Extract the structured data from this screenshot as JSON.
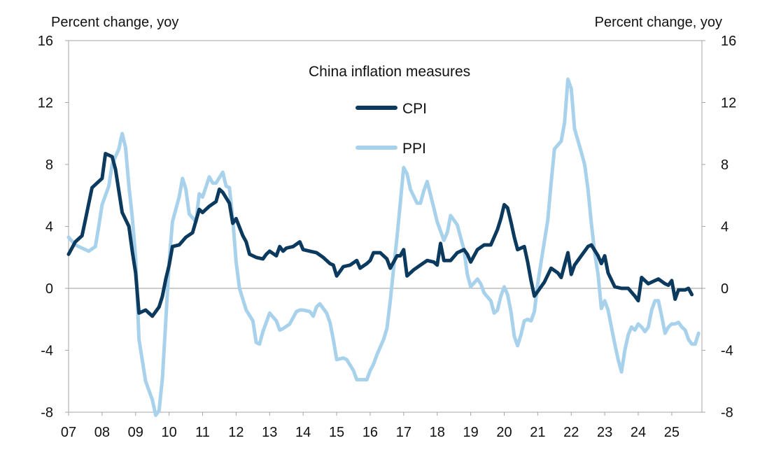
{
  "chart_data": {
    "type": "line",
    "title": "China inflation measures",
    "left_axis_label": "Percent change, yoy",
    "right_axis_label": "Percent change, yoy",
    "xlabel": "",
    "ylabel": "Percent change, yoy",
    "x_tick_labels": [
      "07",
      "08",
      "09",
      "10",
      "11",
      "12",
      "13",
      "14",
      "15",
      "16",
      "17",
      "18",
      "19",
      "20",
      "21",
      "22",
      "23",
      "24",
      "25"
    ],
    "x_range": [
      2007.0,
      2025.9
    ],
    "ylim": [
      -8,
      16
    ],
    "y_ticks": [
      -8,
      -4,
      0,
      4,
      8,
      12,
      16
    ],
    "grid": false,
    "legend_position": "top-center",
    "series": [
      {
        "name": "CPI",
        "color": "#0b3a5e",
        "points": [
          [
            2007.0,
            2.2
          ],
          [
            2007.2,
            3.0
          ],
          [
            2007.4,
            3.4
          ],
          [
            2007.5,
            4.4
          ],
          [
            2007.7,
            6.5
          ],
          [
            2007.9,
            6.9
          ],
          [
            2008.0,
            7.1
          ],
          [
            2008.1,
            8.7
          ],
          [
            2008.3,
            8.5
          ],
          [
            2008.4,
            7.7
          ],
          [
            2008.5,
            6.3
          ],
          [
            2008.6,
            4.9
          ],
          [
            2008.8,
            4.0
          ],
          [
            2008.9,
            2.4
          ],
          [
            2009.0,
            1.0
          ],
          [
            2009.1,
            -1.6
          ],
          [
            2009.3,
            -1.4
          ],
          [
            2009.4,
            -1.6
          ],
          [
            2009.5,
            -1.8
          ],
          [
            2009.7,
            -1.2
          ],
          [
            2009.8,
            -0.5
          ],
          [
            2009.9,
            0.6
          ],
          [
            2010.0,
            1.5
          ],
          [
            2010.1,
            2.7
          ],
          [
            2010.3,
            2.8
          ],
          [
            2010.5,
            3.3
          ],
          [
            2010.7,
            3.6
          ],
          [
            2010.9,
            5.1
          ],
          [
            2011.0,
            4.9
          ],
          [
            2011.2,
            5.3
          ],
          [
            2011.4,
            5.6
          ],
          [
            2011.5,
            6.4
          ],
          [
            2011.6,
            6.2
          ],
          [
            2011.8,
            5.5
          ],
          [
            2011.9,
            4.2
          ],
          [
            2012.0,
            4.5
          ],
          [
            2012.2,
            3.4
          ],
          [
            2012.3,
            3.0
          ],
          [
            2012.4,
            2.2
          ],
          [
            2012.6,
            2.0
          ],
          [
            2012.8,
            1.9
          ],
          [
            2012.9,
            2.2
          ],
          [
            2013.0,
            2.4
          ],
          [
            2013.2,
            2.1
          ],
          [
            2013.3,
            2.7
          ],
          [
            2013.4,
            2.4
          ],
          [
            2013.5,
            2.6
          ],
          [
            2013.7,
            2.7
          ],
          [
            2013.9,
            3.0
          ],
          [
            2014.0,
            2.5
          ],
          [
            2014.2,
            2.4
          ],
          [
            2014.4,
            2.3
          ],
          [
            2014.6,
            2.0
          ],
          [
            2014.8,
            1.6
          ],
          [
            2014.9,
            1.5
          ],
          [
            2015.0,
            0.8
          ],
          [
            2015.2,
            1.4
          ],
          [
            2015.4,
            1.5
          ],
          [
            2015.6,
            1.8
          ],
          [
            2015.7,
            1.3
          ],
          [
            2015.9,
            1.6
          ],
          [
            2016.0,
            1.8
          ],
          [
            2016.1,
            2.3
          ],
          [
            2016.3,
            2.3
          ],
          [
            2016.5,
            1.9
          ],
          [
            2016.6,
            1.3
          ],
          [
            2016.8,
            2.1
          ],
          [
            2016.9,
            2.1
          ],
          [
            2017.0,
            2.5
          ],
          [
            2017.1,
            0.8
          ],
          [
            2017.3,
            1.2
          ],
          [
            2017.5,
            1.5
          ],
          [
            2017.7,
            1.8
          ],
          [
            2017.9,
            1.7
          ],
          [
            2018.0,
            1.5
          ],
          [
            2018.1,
            2.9
          ],
          [
            2018.2,
            1.8
          ],
          [
            2018.4,
            1.8
          ],
          [
            2018.6,
            2.3
          ],
          [
            2018.8,
            2.5
          ],
          [
            2018.9,
            2.2
          ],
          [
            2019.0,
            1.7
          ],
          [
            2019.2,
            2.5
          ],
          [
            2019.4,
            2.8
          ],
          [
            2019.6,
            2.8
          ],
          [
            2019.8,
            3.8
          ],
          [
            2019.9,
            4.5
          ],
          [
            2020.0,
            5.4
          ],
          [
            2020.1,
            5.2
          ],
          [
            2020.2,
            4.3
          ],
          [
            2020.3,
            3.3
          ],
          [
            2020.4,
            2.5
          ],
          [
            2020.6,
            2.7
          ],
          [
            2020.7,
            1.7
          ],
          [
            2020.8,
            0.5
          ],
          [
            2020.9,
            -0.5
          ],
          [
            2021.0,
            -0.2
          ],
          [
            2021.2,
            0.4
          ],
          [
            2021.4,
            1.3
          ],
          [
            2021.6,
            1.0
          ],
          [
            2021.7,
            0.7
          ],
          [
            2021.8,
            1.5
          ],
          [
            2021.9,
            2.3
          ],
          [
            2022.0,
            0.9
          ],
          [
            2022.1,
            1.5
          ],
          [
            2022.3,
            2.1
          ],
          [
            2022.5,
            2.7
          ],
          [
            2022.6,
            2.8
          ],
          [
            2022.8,
            2.1
          ],
          [
            2022.9,
            1.6
          ],
          [
            2023.0,
            2.1
          ],
          [
            2023.1,
            1.0
          ],
          [
            2023.3,
            0.1
          ],
          [
            2023.5,
            0.0
          ],
          [
            2023.7,
            0.0
          ],
          [
            2023.9,
            -0.5
          ],
          [
            2024.0,
            -0.8
          ],
          [
            2024.1,
            0.7
          ],
          [
            2024.3,
            0.3
          ],
          [
            2024.5,
            0.5
          ],
          [
            2024.6,
            0.6
          ],
          [
            2024.8,
            0.3
          ],
          [
            2024.9,
            0.2
          ],
          [
            2025.0,
            0.5
          ],
          [
            2025.1,
            -0.7
          ],
          [
            2025.2,
            -0.1
          ],
          [
            2025.4,
            -0.1
          ],
          [
            2025.5,
            0.0
          ],
          [
            2025.6,
            -0.4
          ]
        ]
      },
      {
        "name": "PPI",
        "color": "#a8d2ec",
        "points": [
          [
            2007.0,
            3.3
          ],
          [
            2007.2,
            2.8
          ],
          [
            2007.4,
            2.6
          ],
          [
            2007.6,
            2.4
          ],
          [
            2007.8,
            2.7
          ],
          [
            2007.9,
            4.0
          ],
          [
            2008.0,
            5.4
          ],
          [
            2008.2,
            6.6
          ],
          [
            2008.3,
            8.0
          ],
          [
            2008.5,
            9.0
          ],
          [
            2008.6,
            10.0
          ],
          [
            2008.7,
            9.1
          ],
          [
            2008.8,
            6.6
          ],
          [
            2008.9,
            4.6
          ],
          [
            2009.0,
            2.0
          ],
          [
            2009.1,
            -3.3
          ],
          [
            2009.3,
            -6.0
          ],
          [
            2009.5,
            -7.2
          ],
          [
            2009.6,
            -8.2
          ],
          [
            2009.7,
            -7.9
          ],
          [
            2009.8,
            -5.8
          ],
          [
            2009.9,
            -2.1
          ],
          [
            2010.0,
            1.7
          ],
          [
            2010.1,
            4.3
          ],
          [
            2010.3,
            5.9
          ],
          [
            2010.4,
            7.1
          ],
          [
            2010.5,
            6.4
          ],
          [
            2010.6,
            4.8
          ],
          [
            2010.8,
            4.3
          ],
          [
            2010.9,
            6.1
          ],
          [
            2011.0,
            5.9
          ],
          [
            2011.2,
            7.2
          ],
          [
            2011.3,
            6.8
          ],
          [
            2011.4,
            6.8
          ],
          [
            2011.6,
            7.5
          ],
          [
            2011.7,
            6.6
          ],
          [
            2011.8,
            6.5
          ],
          [
            2011.9,
            4.5
          ],
          [
            2012.0,
            1.7
          ],
          [
            2012.1,
            0.0
          ],
          [
            2012.3,
            -1.4
          ],
          [
            2012.5,
            -2.1
          ],
          [
            2012.6,
            -3.5
          ],
          [
            2012.7,
            -3.6
          ],
          [
            2012.8,
            -2.8
          ],
          [
            2012.9,
            -2.2
          ],
          [
            2013.0,
            -1.6
          ],
          [
            2013.2,
            -2.1
          ],
          [
            2013.3,
            -2.7
          ],
          [
            2013.4,
            -2.6
          ],
          [
            2013.6,
            -2.3
          ],
          [
            2013.7,
            -1.9
          ],
          [
            2013.8,
            -1.5
          ],
          [
            2013.9,
            -1.4
          ],
          [
            2014.0,
            -1.4
          ],
          [
            2014.2,
            -1.5
          ],
          [
            2014.3,
            -1.8
          ],
          [
            2014.4,
            -1.2
          ],
          [
            2014.5,
            -1.0
          ],
          [
            2014.7,
            -1.6
          ],
          [
            2014.8,
            -2.2
          ],
          [
            2014.9,
            -3.3
          ],
          [
            2015.0,
            -4.6
          ],
          [
            2015.2,
            -4.5
          ],
          [
            2015.3,
            -4.6
          ],
          [
            2015.5,
            -5.3
          ],
          [
            2015.6,
            -5.9
          ],
          [
            2015.8,
            -5.9
          ],
          [
            2015.9,
            -5.9
          ],
          [
            2016.0,
            -5.3
          ],
          [
            2016.1,
            -4.9
          ],
          [
            2016.2,
            -4.3
          ],
          [
            2016.4,
            -3.3
          ],
          [
            2016.5,
            -2.6
          ],
          [
            2016.6,
            -0.8
          ],
          [
            2016.7,
            1.3
          ],
          [
            2016.8,
            3.3
          ],
          [
            2016.9,
            5.5
          ],
          [
            2017.0,
            7.8
          ],
          [
            2017.1,
            7.4
          ],
          [
            2017.2,
            6.4
          ],
          [
            2017.4,
            5.5
          ],
          [
            2017.5,
            5.5
          ],
          [
            2017.6,
            6.3
          ],
          [
            2017.7,
            6.9
          ],
          [
            2017.9,
            5.2
          ],
          [
            2018.0,
            4.3
          ],
          [
            2018.1,
            3.7
          ],
          [
            2018.2,
            3.1
          ],
          [
            2018.3,
            3.6
          ],
          [
            2018.4,
            4.7
          ],
          [
            2018.6,
            4.1
          ],
          [
            2018.7,
            3.3
          ],
          [
            2018.8,
            2.5
          ],
          [
            2018.9,
            0.9
          ],
          [
            2019.0,
            0.1
          ],
          [
            2019.2,
            0.6
          ],
          [
            2019.3,
            0.3
          ],
          [
            2019.4,
            -0.3
          ],
          [
            2019.6,
            -0.8
          ],
          [
            2019.7,
            -1.6
          ],
          [
            2019.8,
            -1.4
          ],
          [
            2019.9,
            -0.5
          ],
          [
            2020.0,
            0.1
          ],
          [
            2020.1,
            -0.4
          ],
          [
            2020.2,
            -1.5
          ],
          [
            2020.3,
            -3.1
          ],
          [
            2020.4,
            -3.7
          ],
          [
            2020.5,
            -3.0
          ],
          [
            2020.6,
            -2.1
          ],
          [
            2020.7,
            -2.0
          ],
          [
            2020.8,
            -2.1
          ],
          [
            2020.9,
            -1.5
          ],
          [
            2021.0,
            0.3
          ],
          [
            2021.1,
            1.7
          ],
          [
            2021.3,
            4.4
          ],
          [
            2021.4,
            6.8
          ],
          [
            2021.5,
            9.0
          ],
          [
            2021.7,
            9.5
          ],
          [
            2021.8,
            10.7
          ],
          [
            2021.9,
            13.5
          ],
          [
            2022.0,
            12.9
          ],
          [
            2022.1,
            10.3
          ],
          [
            2022.3,
            8.8
          ],
          [
            2022.4,
            8.0
          ],
          [
            2022.5,
            6.4
          ],
          [
            2022.6,
            4.2
          ],
          [
            2022.7,
            2.3
          ],
          [
            2022.8,
            0.9
          ],
          [
            2022.9,
            -1.3
          ],
          [
            2023.0,
            -0.8
          ],
          [
            2023.1,
            -1.4
          ],
          [
            2023.2,
            -2.5
          ],
          [
            2023.3,
            -3.6
          ],
          [
            2023.4,
            -4.6
          ],
          [
            2023.5,
            -5.4
          ],
          [
            2023.6,
            -4.0
          ],
          [
            2023.7,
            -3.0
          ],
          [
            2023.8,
            -2.5
          ],
          [
            2023.9,
            -2.7
          ],
          [
            2024.0,
            -2.3
          ],
          [
            2024.1,
            -2.5
          ],
          [
            2024.2,
            -2.8
          ],
          [
            2024.3,
            -2.5
          ],
          [
            2024.4,
            -1.4
          ],
          [
            2024.5,
            -0.8
          ],
          [
            2024.6,
            -0.8
          ],
          [
            2024.7,
            -1.8
          ],
          [
            2024.8,
            -2.9
          ],
          [
            2024.9,
            -2.5
          ],
          [
            2025.0,
            -2.3
          ],
          [
            2025.1,
            -2.3
          ],
          [
            2025.2,
            -2.2
          ],
          [
            2025.3,
            -2.5
          ],
          [
            2025.4,
            -2.7
          ],
          [
            2025.5,
            -3.3
          ],
          [
            2025.6,
            -3.6
          ],
          [
            2025.7,
            -3.6
          ],
          [
            2025.8,
            -2.9
          ]
        ]
      }
    ]
  }
}
